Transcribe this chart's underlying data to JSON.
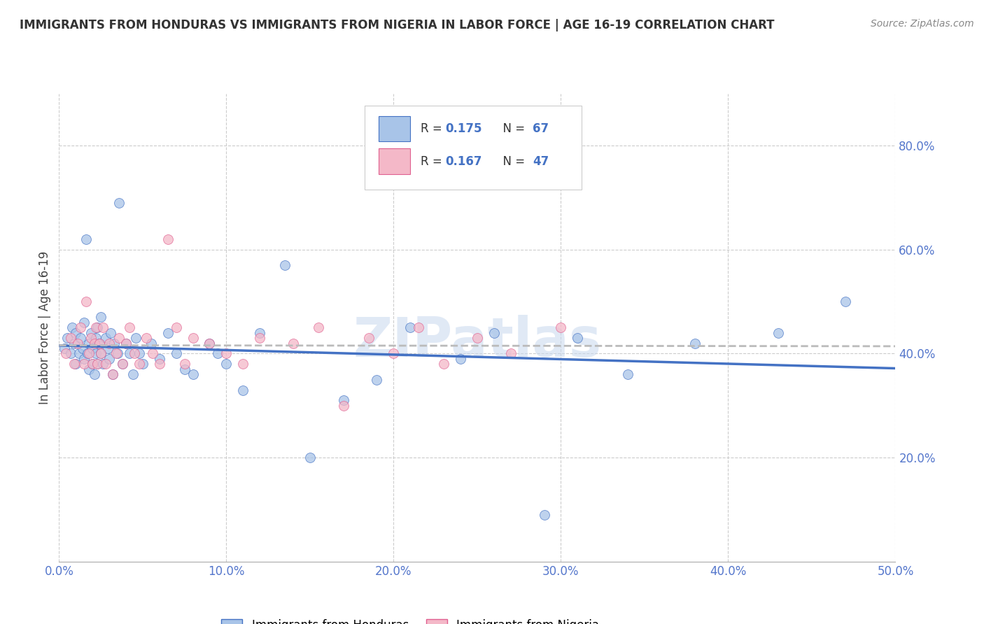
{
  "title": "IMMIGRANTS FROM HONDURAS VS IMMIGRANTS FROM NIGERIA IN LABOR FORCE | AGE 16-19 CORRELATION CHART",
  "source_text": "Source: ZipAtlas.com",
  "ylabel": "In Labor Force | Age 16-19",
  "xlim": [
    0.0,
    0.5
  ],
  "ylim": [
    0.0,
    0.9
  ],
  "xtick_labels": [
    "0.0%",
    "",
    "10.0%",
    "",
    "20.0%",
    "",
    "30.0%",
    "",
    "40.0%",
    "",
    "50.0%"
  ],
  "xtick_vals": [
    0.0,
    0.05,
    0.1,
    0.15,
    0.2,
    0.25,
    0.3,
    0.35,
    0.4,
    0.45,
    0.5
  ],
  "ytick_labels": [
    "20.0%",
    "40.0%",
    "60.0%",
    "80.0%"
  ],
  "ytick_vals": [
    0.2,
    0.4,
    0.6,
    0.8
  ],
  "watermark": "ZIPatlas",
  "color_honduras": "#A8C4E8",
  "color_nigeria": "#F4B8C8",
  "line_color_honduras": "#4472C4",
  "line_color_nigeria": "#E06090",
  "regression_line_color_honduras": "#4472C4",
  "regression_line_color_nigeria": "#BBBBBB",
  "background_color": "#FFFFFF",
  "grid_color": "#CCCCCC",
  "title_color": "#333333",
  "source_color": "#888888",
  "tick_color": "#5577CC",
  "scatter_alpha": 0.75,
  "scatter_size": 100,
  "honduras_x": [
    0.003,
    0.005,
    0.007,
    0.008,
    0.009,
    0.01,
    0.01,
    0.012,
    0.013,
    0.014,
    0.015,
    0.015,
    0.016,
    0.017,
    0.018,
    0.018,
    0.019,
    0.02,
    0.02,
    0.021,
    0.022,
    0.022,
    0.023,
    0.023,
    0.024,
    0.025,
    0.025,
    0.026,
    0.028,
    0.029,
    0.03,
    0.031,
    0.032,
    0.033,
    0.035,
    0.036,
    0.038,
    0.04,
    0.042,
    0.044,
    0.046,
    0.048,
    0.05,
    0.055,
    0.06,
    0.065,
    0.07,
    0.075,
    0.08,
    0.09,
    0.095,
    0.1,
    0.11,
    0.12,
    0.135,
    0.15,
    0.17,
    0.19,
    0.21,
    0.24,
    0.26,
    0.29,
    0.31,
    0.34,
    0.38,
    0.43,
    0.47
  ],
  "honduras_y": [
    0.41,
    0.43,
    0.4,
    0.45,
    0.42,
    0.38,
    0.44,
    0.4,
    0.43,
    0.41,
    0.39,
    0.46,
    0.62,
    0.4,
    0.42,
    0.37,
    0.44,
    0.38,
    0.41,
    0.36,
    0.43,
    0.4,
    0.45,
    0.38,
    0.42,
    0.4,
    0.47,
    0.38,
    0.43,
    0.41,
    0.39,
    0.44,
    0.36,
    0.42,
    0.4,
    0.69,
    0.38,
    0.42,
    0.4,
    0.36,
    0.43,
    0.4,
    0.38,
    0.42,
    0.39,
    0.44,
    0.4,
    0.37,
    0.36,
    0.42,
    0.4,
    0.38,
    0.33,
    0.44,
    0.57,
    0.2,
    0.31,
    0.35,
    0.45,
    0.39,
    0.44,
    0.09,
    0.43,
    0.36,
    0.42,
    0.44,
    0.5
  ],
  "nigeria_x": [
    0.004,
    0.007,
    0.009,
    0.011,
    0.013,
    0.015,
    0.016,
    0.018,
    0.019,
    0.02,
    0.021,
    0.022,
    0.023,
    0.024,
    0.025,
    0.026,
    0.028,
    0.03,
    0.032,
    0.034,
    0.036,
    0.038,
    0.04,
    0.042,
    0.045,
    0.048,
    0.052,
    0.056,
    0.06,
    0.065,
    0.07,
    0.075,
    0.08,
    0.09,
    0.1,
    0.11,
    0.12,
    0.14,
    0.155,
    0.17,
    0.185,
    0.2,
    0.215,
    0.23,
    0.25,
    0.27,
    0.3
  ],
  "nigeria_y": [
    0.4,
    0.43,
    0.38,
    0.42,
    0.45,
    0.38,
    0.5,
    0.4,
    0.43,
    0.38,
    0.42,
    0.45,
    0.38,
    0.42,
    0.4,
    0.45,
    0.38,
    0.42,
    0.36,
    0.4,
    0.43,
    0.38,
    0.42,
    0.45,
    0.4,
    0.38,
    0.43,
    0.4,
    0.38,
    0.62,
    0.45,
    0.38,
    0.43,
    0.42,
    0.4,
    0.38,
    0.43,
    0.42,
    0.45,
    0.3,
    0.43,
    0.4,
    0.45,
    0.38,
    0.43,
    0.4,
    0.45
  ]
}
